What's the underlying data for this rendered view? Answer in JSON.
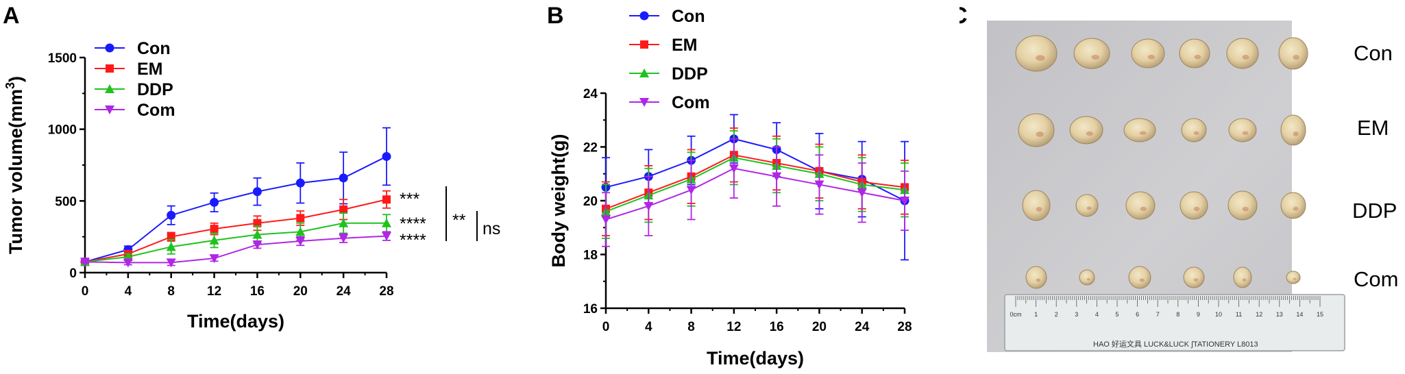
{
  "chart_data": [
    {
      "type": "line",
      "panel": "A",
      "xlabel": "Time(days)",
      "ylabel": "Tumor volume(mm3)",
      "x": [
        0,
        4,
        8,
        12,
        16,
        20,
        24,
        28
      ],
      "xlim": [
        0,
        28
      ],
      "ylim": [
        0,
        1500
      ],
      "yticks": [
        0,
        500,
        1000,
        1500
      ],
      "grid": false,
      "legend_position": "top-left",
      "series": [
        {
          "name": "Con",
          "color": "#1a1aff",
          "marker": "circle",
          "values": [
            75,
            160,
            400,
            490,
            565,
            625,
            660,
            810
          ],
          "errors": [
            10,
            25,
            65,
            65,
            95,
            140,
            180,
            200
          ]
        },
        {
          "name": "EM",
          "color": "#ff1a1a",
          "marker": "square",
          "values": [
            75,
            130,
            250,
            305,
            345,
            380,
            440,
            510
          ],
          "errors": [
            10,
            20,
            30,
            40,
            50,
            50,
            70,
            60
          ]
        },
        {
          "name": "DDP",
          "color": "#1fc21f",
          "marker": "triangle",
          "values": [
            75,
            110,
            180,
            225,
            265,
            285,
            345,
            345
          ],
          "errors": [
            10,
            20,
            50,
            50,
            60,
            60,
            70,
            60
          ]
        },
        {
          "name": "Com",
          "color": "#b026e6",
          "marker": "triangle-down",
          "values": [
            75,
            70,
            70,
            100,
            195,
            220,
            240,
            255
          ],
          "errors": [
            10,
            15,
            20,
            20,
            25,
            30,
            30,
            30
          ]
        }
      ],
      "annotations": {
        "sig_em": "***",
        "sig_ddp": "****",
        "sig_com": "****",
        "sig_bracket_inner": "**",
        "sig_bracket_outer": "ns"
      }
    },
    {
      "type": "line",
      "panel": "B",
      "xlabel": "Time(days)",
      "ylabel": "Body weight(g)",
      "x": [
        0,
        4,
        8,
        12,
        16,
        20,
        24,
        28
      ],
      "xlim": [
        0,
        28
      ],
      "ylim": [
        16,
        24
      ],
      "yticks": [
        16,
        18,
        20,
        22,
        24
      ],
      "grid": false,
      "legend_position": "above-plot",
      "series": [
        {
          "name": "Con",
          "color": "#1a1aff",
          "marker": "circle",
          "values": [
            20.5,
            20.9,
            21.5,
            22.3,
            21.9,
            21.1,
            20.8,
            20.0
          ],
          "errors": [
            1.1,
            1.0,
            0.9,
            0.9,
            1.0,
            1.4,
            1.4,
            2.2
          ]
        },
        {
          "name": "EM",
          "color": "#ff1a1a",
          "marker": "square",
          "values": [
            19.7,
            20.3,
            20.9,
            21.7,
            21.4,
            21.1,
            20.7,
            20.5
          ],
          "errors": [
            1.0,
            1.0,
            1.0,
            1.0,
            1.0,
            1.0,
            1.0,
            1.0
          ]
        },
        {
          "name": "DDP",
          "color": "#1fc21f",
          "marker": "triangle",
          "values": [
            19.6,
            20.2,
            20.8,
            21.6,
            21.3,
            21.0,
            20.6,
            20.4
          ],
          "errors": [
            1.0,
            1.0,
            1.0,
            1.0,
            1.0,
            1.0,
            1.0,
            1.0
          ]
        },
        {
          "name": "Com",
          "color": "#b026e6",
          "marker": "triangle-down",
          "values": [
            19.3,
            19.8,
            20.4,
            21.2,
            20.9,
            20.6,
            20.3,
            20.0
          ],
          "errors": [
            1.0,
            1.1,
            1.1,
            1.1,
            1.1,
            1.1,
            1.1,
            1.1
          ]
        }
      ]
    }
  ],
  "panels": {
    "a": "A",
    "b": "B",
    "c": "C"
  },
  "photo": {
    "rows": [
      "Con",
      "EM",
      "DDP",
      "Com"
    ],
    "ruler_numbers": [
      "0cm",
      "1",
      "2",
      "3",
      "4",
      "5",
      "6",
      "7",
      "8",
      "9",
      "10",
      "11",
      "12",
      "13",
      "14",
      "15"
    ],
    "ruler_brand": "HAO 好运文具   LUCK&LUCK  ∫TATIONERY    L8013"
  }
}
